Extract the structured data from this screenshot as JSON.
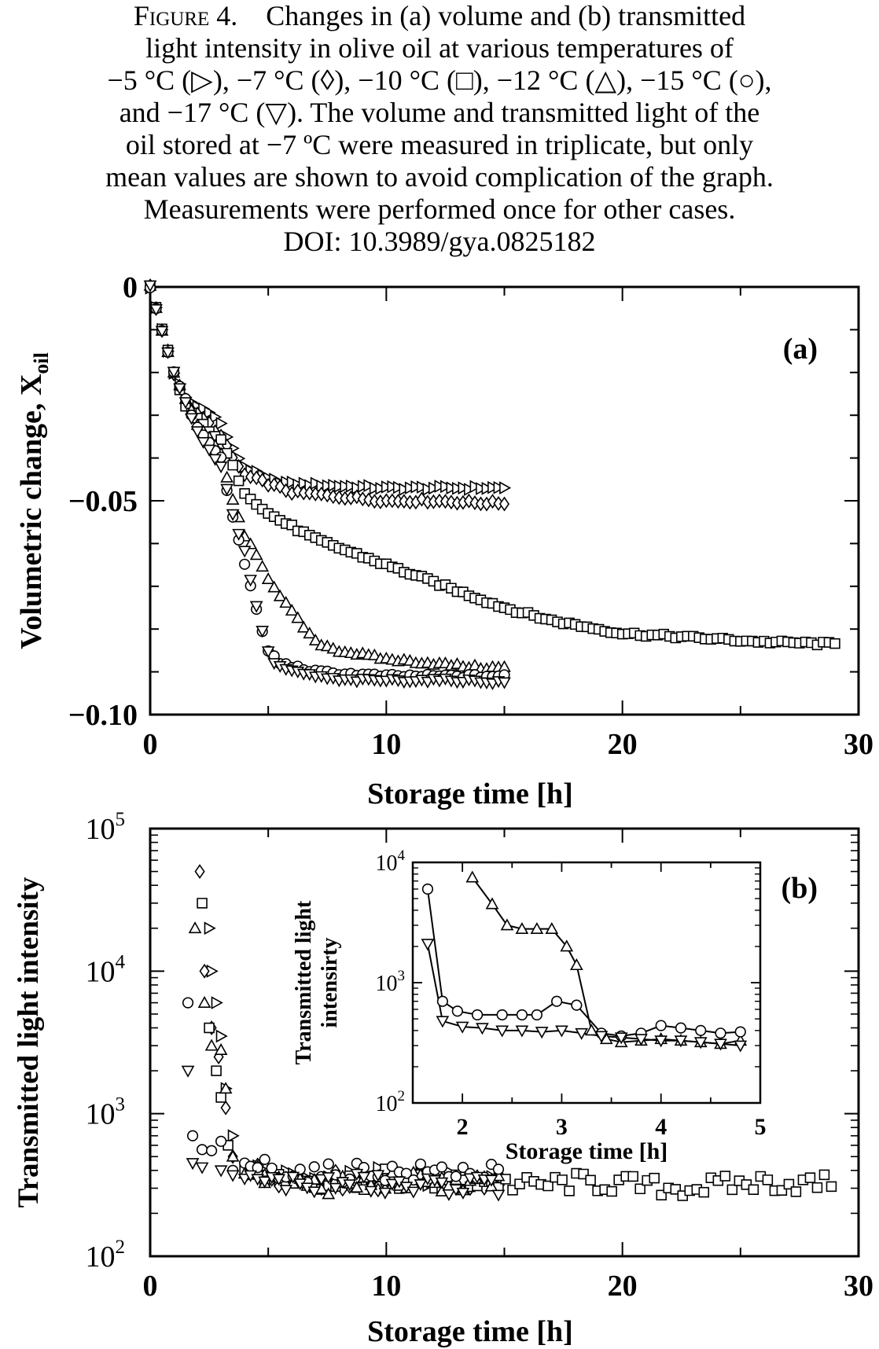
{
  "caption": {
    "lines": [
      "Figure 4.    Changes in (a) volume and (b) transmitted",
      "light intensity in olive oil at various temperatures of",
      "−5 °C (▷), −7 °C (◊), −10 °C (□), −12 °C (△), −15 °C (○),",
      "and −17 °C (▽). The volume and transmitted light of the",
      "oil stored at −7 ºC were measured in triplicate, but only",
      "mean values are shown to avoid complication of the graph.",
      "Measurements were performed once for other cases.",
      "DOI: 10.3989/gya.0825182"
    ]
  },
  "chart_data": [
    {
      "type": "scatter",
      "panel_label": "(a)",
      "xlabel": "Storage time [h]",
      "ylabel": "Volumetric change, X",
      "ylabel_subscript": "oil",
      "xlim": [
        0,
        30
      ],
      "ylim": [
        -0.1,
        0
      ],
      "x_ticks": [
        0,
        10,
        20,
        30
      ],
      "y_ticks": [
        0,
        -0.05,
        -0.1
      ],
      "y_tick_labels": [
        "0",
        "−0.05",
        "−0.10"
      ],
      "series": [
        {
          "marker": "triangle-right",
          "points": [
            [
              0,
              0
            ],
            [
              0.5,
              -0.01
            ],
            [
              1,
              -0.02
            ],
            [
              1.5,
              -0.026
            ],
            [
              2,
              -0.028
            ],
            [
              2.5,
              -0.029
            ],
            [
              3,
              -0.032
            ],
            [
              3.5,
              -0.038
            ],
            [
              4,
              -0.042
            ],
            [
              5,
              -0.045
            ],
            [
              6,
              -0.046
            ],
            [
              8,
              -0.0465
            ],
            [
              10,
              -0.047
            ],
            [
              12,
              -0.047
            ],
            [
              14,
              -0.047
            ],
            [
              15,
              -0.047
            ]
          ]
        },
        {
          "marker": "diamond",
          "points": [
            [
              0,
              0
            ],
            [
              0.5,
              -0.01
            ],
            [
              1,
              -0.02
            ],
            [
              1.5,
              -0.027
            ],
            [
              2,
              -0.03
            ],
            [
              2.5,
              -0.032
            ],
            [
              3,
              -0.035
            ],
            [
              3.5,
              -0.04
            ],
            [
              4,
              -0.044
            ],
            [
              5,
              -0.046
            ],
            [
              6,
              -0.048
            ],
            [
              8,
              -0.049
            ],
            [
              10,
              -0.05
            ],
            [
              12,
              -0.05
            ],
            [
              14,
              -0.0505
            ],
            [
              15,
              -0.0505
            ]
          ]
        },
        {
          "marker": "square",
          "points": [
            [
              0,
              0
            ],
            [
              0.5,
              -0.01
            ],
            [
              1,
              -0.02
            ],
            [
              1.5,
              -0.028
            ],
            [
              2,
              -0.031
            ],
            [
              3,
              -0.036
            ],
            [
              4,
              -0.048
            ],
            [
              5,
              -0.053
            ],
            [
              7,
              -0.059
            ],
            [
              9,
              -0.063
            ],
            [
              11,
              -0.067
            ],
            [
              13,
              -0.071
            ],
            [
              15,
              -0.075
            ],
            [
              17,
              -0.078
            ],
            [
              20,
              -0.081
            ],
            [
              23,
              -0.082
            ],
            [
              26,
              -0.083
            ],
            [
              29,
              -0.0835
            ]
          ]
        },
        {
          "marker": "triangle-up",
          "points": [
            [
              0,
              0
            ],
            [
              0.5,
              -0.01
            ],
            [
              1,
              -0.02
            ],
            [
              2,
              -0.032
            ],
            [
              3,
              -0.039
            ],
            [
              3.5,
              -0.05
            ],
            [
              4,
              -0.058
            ],
            [
              5,
              -0.068
            ],
            [
              6,
              -0.076
            ],
            [
              7,
              -0.083
            ],
            [
              8,
              -0.085
            ],
            [
              10,
              -0.087
            ],
            [
              12,
              -0.088
            ],
            [
              14,
              -0.089
            ],
            [
              15,
              -0.089
            ]
          ]
        },
        {
          "marker": "circle",
          "points": [
            [
              0,
              0
            ],
            [
              0.5,
              -0.01
            ],
            [
              1,
              -0.02
            ],
            [
              2,
              -0.033
            ],
            [
              3,
              -0.04
            ],
            [
              3.4,
              -0.052
            ],
            [
              3.8,
              -0.06
            ],
            [
              4.2,
              -0.069
            ],
            [
              4.6,
              -0.078
            ],
            [
              5,
              -0.085
            ],
            [
              5.5,
              -0.088
            ],
            [
              7,
              -0.09
            ],
            [
              10,
              -0.091
            ],
            [
              13,
              -0.091
            ],
            [
              15,
              -0.091
            ]
          ]
        },
        {
          "marker": "triangle-down",
          "points": [
            [
              0,
              0
            ],
            [
              0.5,
              -0.01
            ],
            [
              1,
              -0.02
            ],
            [
              2,
              -0.034
            ],
            [
              3,
              -0.042
            ],
            [
              3.6,
              -0.055
            ],
            [
              4,
              -0.062
            ],
            [
              4.4,
              -0.072
            ],
            [
              4.8,
              -0.082
            ],
            [
              5.2,
              -0.088
            ],
            [
              6,
              -0.09
            ],
            [
              8,
              -0.092
            ],
            [
              11,
              -0.092
            ],
            [
              13,
              -0.092
            ],
            [
              15,
              -0.0925
            ]
          ]
        }
      ]
    },
    {
      "type": "scatter",
      "panel_label": "(b)",
      "xlabel": "Storage time [h]",
      "ylabel": "Transmitted light intensity",
      "yscale": "log",
      "xlim": [
        0,
        30
      ],
      "ylim": [
        100,
        100000
      ],
      "x_ticks": [
        0,
        10,
        20,
        30
      ],
      "y_tick_exponents": [
        2,
        3,
        4,
        5
      ],
      "series": [
        {
          "marker": "triangle-right",
          "points": [
            [
              2.5,
              20000
            ],
            [
              2.6,
              10000
            ],
            [
              2.8,
              6000
            ],
            [
              3,
              3500
            ],
            [
              3.2,
              1500
            ],
            [
              3.5,
              700
            ],
            [
              4,
              420
            ],
            [
              6,
              350
            ],
            [
              8,
              350
            ],
            [
              10,
              360
            ],
            [
              12,
              340
            ],
            [
              14,
              350
            ],
            [
              15,
              360
            ]
          ]
        },
        {
          "marker": "diamond",
          "points": [
            [
              2.1,
              50000
            ],
            [
              2.3,
              10000
            ],
            [
              2.6,
              4000
            ],
            [
              2.9,
              2500
            ],
            [
              3.2,
              1100
            ],
            [
              3.5,
              500
            ],
            [
              4,
              400
            ],
            [
              6,
              350
            ],
            [
              8,
              340
            ],
            [
              10,
              330
            ],
            [
              12,
              350
            ],
            [
              14,
              330
            ],
            [
              15,
              340
            ]
          ]
        },
        {
          "marker": "square",
          "points": [
            [
              2.2,
              30000
            ],
            [
              2.5,
              4000
            ],
            [
              2.8,
              2000
            ],
            [
              3,
              1300
            ],
            [
              3.3,
              600
            ],
            [
              4,
              400
            ],
            [
              6,
              350
            ],
            [
              8,
              330
            ],
            [
              10,
              350
            ],
            [
              12,
              320
            ],
            [
              14,
              340
            ],
            [
              16,
              310
            ],
            [
              18,
              330
            ],
            [
              20,
              320
            ],
            [
              22,
              300
            ],
            [
              24,
              310
            ],
            [
              26,
              330
            ],
            [
              28,
              320
            ],
            [
              29,
              330
            ]
          ]
        },
        {
          "marker": "triangle-up",
          "points": [
            [
              1.9,
              20000
            ],
            [
              2.3,
              6000
            ],
            [
              2.6,
              3000
            ],
            [
              3,
              2800
            ],
            [
              3.2,
              1500
            ],
            [
              3.5,
              500
            ],
            [
              4,
              380
            ],
            [
              6,
              330
            ],
            [
              8,
              310
            ],
            [
              10,
              340
            ],
            [
              12,
              330
            ],
            [
              14,
              320
            ],
            [
              15,
              330
            ]
          ]
        },
        {
          "marker": "circle",
          "points": [
            [
              1.6,
              6000
            ],
            [
              1.8,
              700
            ],
            [
              2.2,
              560
            ],
            [
              2.6,
              550
            ],
            [
              3,
              640
            ],
            [
              3.5,
              400
            ],
            [
              4,
              450
            ],
            [
              5,
              420
            ],
            [
              7,
              370
            ],
            [
              9,
              400
            ],
            [
              11,
              380
            ],
            [
              13,
              400
            ],
            [
              15,
              370
            ]
          ]
        },
        {
          "marker": "triangle-down",
          "points": [
            [
              1.6,
              2000
            ],
            [
              1.8,
              450
            ],
            [
              2.2,
              420
            ],
            [
              3,
              400
            ],
            [
              3.5,
              370
            ],
            [
              4,
              350
            ],
            [
              5,
              330
            ],
            [
              7,
              320
            ],
            [
              9,
              330
            ],
            [
              11,
              300
            ],
            [
              13,
              320
            ],
            [
              15,
              310
            ]
          ]
        }
      ],
      "inset": {
        "xlabel": "Storage time [h]",
        "ylabel_lines": [
          "Transmitted light",
          "intensirty"
        ],
        "yscale": "log",
        "xlim": [
          1.5,
          5
        ],
        "ylim": [
          100,
          10000
        ],
        "x_ticks": [
          2,
          3,
          4,
          5
        ],
        "y_tick_exponents": [
          2,
          3,
          4
        ],
        "series": [
          {
            "marker": "triangle-up",
            "points": [
              [
                2.1,
                7500
              ],
              [
                2.3,
                4500
              ],
              [
                2.45,
                3000
              ],
              [
                2.6,
                2800
              ],
              [
                2.75,
                2800
              ],
              [
                2.9,
                2800
              ],
              [
                3.05,
                2000
              ],
              [
                3.15,
                1400
              ],
              [
                3.3,
                400
              ],
              [
                3.45,
                340
              ],
              [
                3.6,
                320
              ],
              [
                3.8,
                330
              ],
              [
                4,
                340
              ],
              [
                4.2,
                330
              ],
              [
                4.4,
                320
              ],
              [
                4.6,
                310
              ],
              [
                4.8,
                330
              ]
            ]
          },
          {
            "marker": "circle",
            "points": [
              [
                1.65,
                6000
              ],
              [
                1.8,
                700
              ],
              [
                1.95,
                580
              ],
              [
                2.15,
                540
              ],
              [
                2.4,
                540
              ],
              [
                2.6,
                540
              ],
              [
                2.75,
                540
              ],
              [
                2.95,
                700
              ],
              [
                3.15,
                650
              ],
              [
                3.4,
                380
              ],
              [
                3.6,
                360
              ],
              [
                3.8,
                380
              ],
              [
                4,
                440
              ],
              [
                4.2,
                420
              ],
              [
                4.4,
                400
              ],
              [
                4.6,
                380
              ],
              [
                4.8,
                390
              ]
            ]
          },
          {
            "marker": "triangle-down",
            "points": [
              [
                1.65,
                2100
              ],
              [
                1.8,
                480
              ],
              [
                2,
                430
              ],
              [
                2.2,
                420
              ],
              [
                2.4,
                400
              ],
              [
                2.6,
                400
              ],
              [
                2.8,
                390
              ],
              [
                3,
                400
              ],
              [
                3.2,
                380
              ],
              [
                3.4,
                360
              ],
              [
                3.6,
                350
              ],
              [
                3.8,
                340
              ],
              [
                4,
                330
              ],
              [
                4.2,
                330
              ],
              [
                4.4,
                320
              ],
              [
                4.6,
                310
              ],
              [
                4.8,
                300
              ]
            ]
          }
        ]
      }
    }
  ]
}
